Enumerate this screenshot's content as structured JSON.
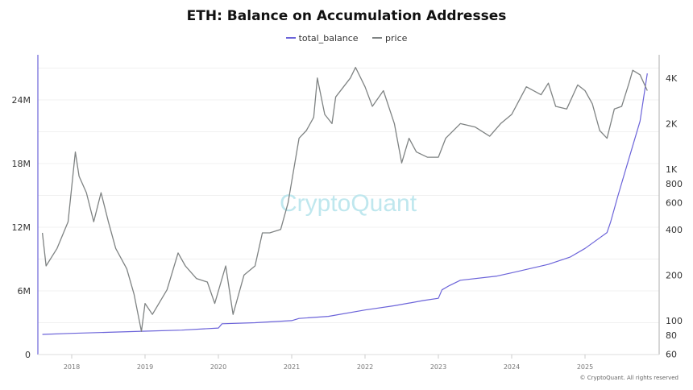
{
  "chart_data": {
    "type": "line",
    "title": "ETH: Balance on Accumulation Addresses",
    "legend_position": "top",
    "grid": true,
    "x_ticks": [
      "2018",
      "2019",
      "2020",
      "2021",
      "2022",
      "2023",
      "2024",
      "2025"
    ],
    "x_range": [
      2017.55,
      2025.95
    ],
    "y_left": {
      "ticks": [
        "0",
        "6M",
        "12M",
        "18M",
        "24M"
      ],
      "tick_values": [
        0,
        6000000,
        12000000,
        18000000,
        24000000
      ],
      "range": [
        0,
        28000000
      ],
      "scale": "linear"
    },
    "y_right": {
      "ticks": [
        "60",
        "80",
        "100",
        "200",
        "400",
        "600",
        "800",
        "1K",
        "2K",
        "4K"
      ],
      "tick_values": [
        60,
        80,
        100,
        200,
        400,
        600,
        800,
        1000,
        2000,
        4000
      ],
      "range": [
        60,
        5000
      ],
      "scale": "log"
    },
    "series": [
      {
        "name": "total_balance",
        "axis": "left",
        "color": "#6b63d9",
        "x": [
          2017.6,
          2018.0,
          2018.5,
          2019.0,
          2019.5,
          2020.0,
          2020.05,
          2020.5,
          2021.0,
          2021.1,
          2021.5,
          2022.0,
          2022.4,
          2022.8,
          2023.0,
          2023.05,
          2023.15,
          2023.3,
          2023.8,
          2024.0,
          2024.5,
          2024.8,
          2025.0,
          2025.2,
          2025.3,
          2025.35,
          2025.45,
          2025.6,
          2025.75,
          2025.85
        ],
        "values": [
          1900000,
          2000000,
          2100000,
          2200000,
          2300000,
          2500000,
          2900000,
          3000000,
          3200000,
          3400000,
          3600000,
          4200000,
          4600000,
          5100000,
          5300000,
          6100000,
          6500000,
          7000000,
          7400000,
          7700000,
          8500000,
          9200000,
          10000000,
          11000000,
          11500000,
          12500000,
          15000000,
          18500000,
          22000000,
          26500000
        ]
      },
      {
        "name": "price",
        "axis": "right",
        "color": "#7f8383",
        "x": [
          2017.6,
          2017.65,
          2017.8,
          2017.95,
          2018.05,
          2018.1,
          2018.2,
          2018.3,
          2018.4,
          2018.5,
          2018.6,
          2018.75,
          2018.85,
          2018.95,
          2019.0,
          2019.1,
          2019.3,
          2019.45,
          2019.55,
          2019.7,
          2019.85,
          2019.95,
          2020.1,
          2020.2,
          2020.35,
          2020.5,
          2020.6,
          2020.7,
          2020.85,
          2020.95,
          2021.1,
          2021.2,
          2021.3,
          2021.35,
          2021.45,
          2021.55,
          2021.6,
          2021.8,
          2021.87,
          2022.0,
          2022.1,
          2022.25,
          2022.4,
          2022.5,
          2022.6,
          2022.7,
          2022.85,
          2023.0,
          2023.1,
          2023.3,
          2023.5,
          2023.7,
          2023.85,
          2024.0,
          2024.2,
          2024.4,
          2024.5,
          2024.6,
          2024.75,
          2024.9,
          2025.0,
          2025.1,
          2025.2,
          2025.3,
          2025.4,
          2025.5,
          2025.6,
          2025.65,
          2025.75,
          2025.85
        ],
        "values": [
          380,
          230,
          300,
          450,
          1300,
          900,
          700,
          450,
          700,
          450,
          300,
          220,
          150,
          85,
          130,
          110,
          160,
          280,
          230,
          190,
          180,
          130,
          230,
          110,
          200,
          230,
          380,
          380,
          400,
          600,
          1600,
          1800,
          2200,
          4000,
          2300,
          2000,
          3000,
          4000,
          4700,
          3500,
          2600,
          3300,
          2000,
          1100,
          1600,
          1300,
          1200,
          1200,
          1600,
          2000,
          1900,
          1650,
          2000,
          2300,
          3500,
          3100,
          3700,
          2600,
          2500,
          3600,
          3300,
          2700,
          1800,
          1600,
          2500,
          2600,
          3700,
          4500,
          4200,
          3300
        ]
      }
    ]
  },
  "watermark": "CryptoQuant",
  "footer": "© CryptoQuant. All rights reserved"
}
